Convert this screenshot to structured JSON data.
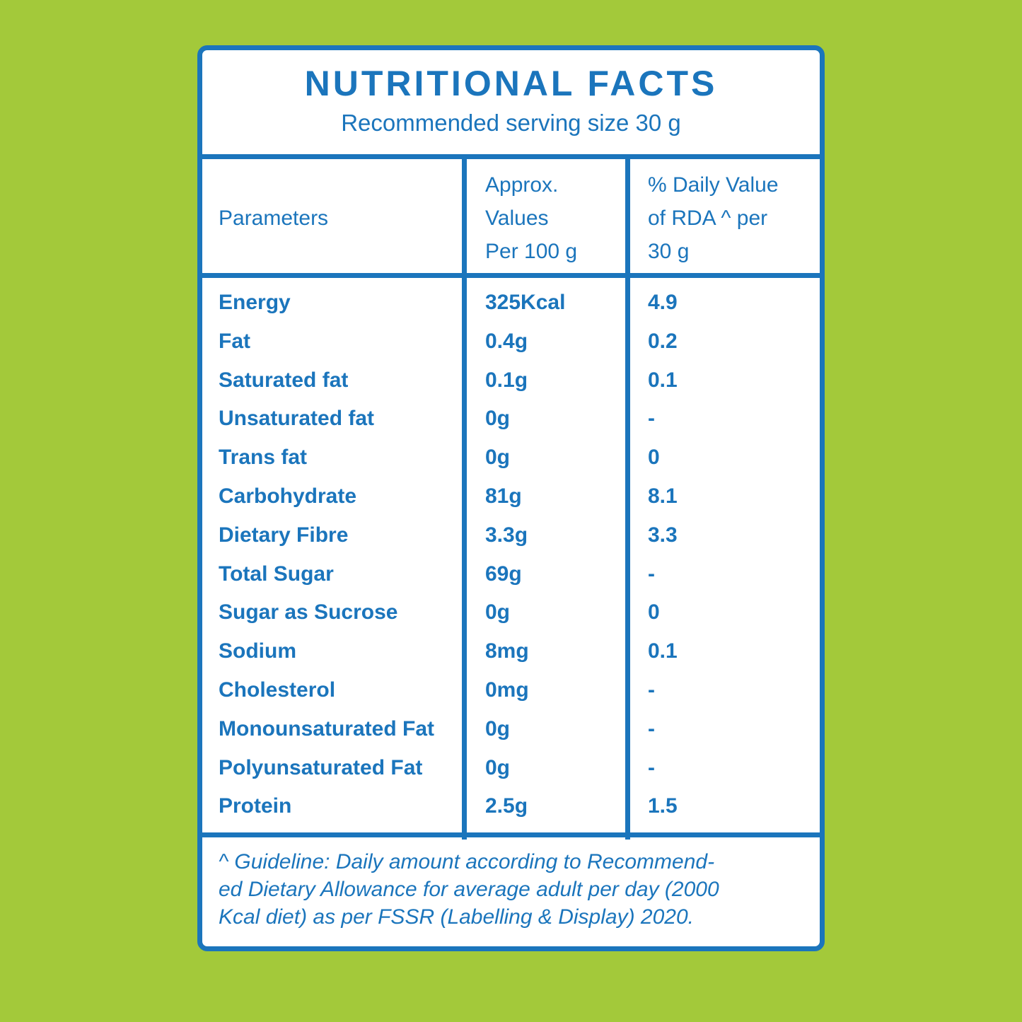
{
  "header": {
    "title": "NUTRITIONAL FACTS",
    "subtitle": "Recommended serving size 30 g"
  },
  "table": {
    "columns": [
      [
        "Parameters"
      ],
      [
        "Approx.",
        "Values",
        "Per 100 g"
      ],
      [
        "% Daily Value",
        "of RDA ^ per",
        "30 g"
      ]
    ],
    "rows": [
      [
        "Energy",
        "325Kcal",
        "4.9"
      ],
      [
        "Fat",
        "0.4g",
        "0.2"
      ],
      [
        "Saturated fat",
        "0.1g",
        "0.1"
      ],
      [
        "Unsaturated fat",
        "0g",
        "-"
      ],
      [
        "Trans fat",
        "0g",
        "0"
      ],
      [
        "Carbohydrate",
        "81g",
        "8.1"
      ],
      [
        "Dietary Fibre",
        "3.3g",
        "3.3"
      ],
      [
        "Total Sugar",
        "69g",
        "-"
      ],
      [
        "Sugar as Sucrose",
        "0g",
        "0"
      ],
      [
        "Sodium",
        "8mg",
        "0.1"
      ],
      [
        "Cholesterol",
        "0mg",
        "-"
      ],
      [
        "Monounsaturated Fat",
        "0g",
        "-"
      ],
      [
        "Polyunsaturated Fat",
        "0g",
        "-"
      ],
      [
        "Protein",
        "2.5g",
        "1.5"
      ]
    ]
  },
  "footnote": [
    "^ Guideline: Daily amount according to Recommend-",
    "ed Dietary Allowance for average adult per day (2000",
    "Kcal diet) as per FSSR (Labelling & Display) 2020."
  ]
}
